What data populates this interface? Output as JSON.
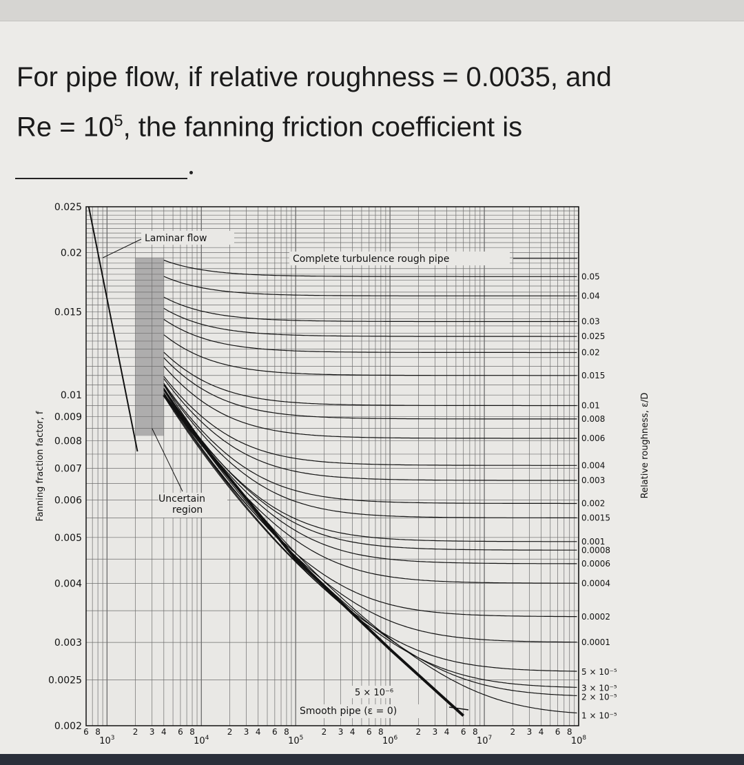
{
  "question": {
    "line1": "For pipe flow, if relative roughness = 0.0035, and",
    "line2_prefix": "Re = 10",
    "line2_sup": "5",
    "line2_suffix": ", the fanning friction coefficient is"
  },
  "chart_data": {
    "type": "line",
    "title": "",
    "ylabel": "Fanning fraction factor, f",
    "ylabel_sub": "f",
    "y2label": "Relative roughness, ε/D",
    "xscale": "log",
    "yscale": "log",
    "xlim": [
      600,
      100000000
    ],
    "ylim": [
      0.002,
      0.025
    ],
    "y_ticks": [
      "0.025",
      "0.02",
      "0.015",
      "0.01",
      "0.009",
      "0.008",
      "0.007",
      "0.006",
      "0.005",
      "0.004",
      "0.003",
      "0.0025",
      "0.002"
    ],
    "y_tick_values": [
      0.025,
      0.02,
      0.015,
      0.01,
      0.009,
      0.008,
      0.007,
      0.006,
      0.005,
      0.004,
      0.003,
      0.0025,
      0.002
    ],
    "x_decades": [
      {
        "value": 1000,
        "base": "10",
        "exp": "3"
      },
      {
        "value": 10000,
        "base": "10",
        "exp": "4"
      },
      {
        "value": 100000,
        "base": "10",
        "exp": "5"
      },
      {
        "value": 1000000,
        "base": "10",
        "exp": "6"
      },
      {
        "value": 10000000,
        "base": "10",
        "exp": "7"
      },
      {
        "value": 100000000,
        "base": "10",
        "exp": "8"
      }
    ],
    "x_minor_label_sets": [
      {
        "labels": [
          "6",
          "8"
        ],
        "values": [
          600,
          800
        ]
      },
      {
        "labels": [
          "2",
          "3",
          "4",
          "6",
          "8"
        ],
        "values": [
          2000,
          3000,
          4000,
          6000,
          8000
        ]
      },
      {
        "labels": [
          "2",
          "3",
          "4",
          "6",
          "8"
        ],
        "values": [
          20000,
          30000,
          40000,
          60000,
          80000
        ]
      },
      {
        "labels": [
          "2",
          "3",
          "4",
          "6",
          "8"
        ],
        "values": [
          200000,
          300000,
          400000,
          600000,
          800000
        ]
      },
      {
        "labels": [
          "2",
          "3",
          "4",
          "6",
          "8"
        ],
        "values": [
          2000000,
          3000000,
          4000000,
          6000000,
          8000000
        ]
      },
      {
        "labels": [
          "2",
          "3",
          "4",
          "6",
          "8"
        ],
        "values": [
          20000000,
          30000000,
          40000000,
          60000000,
          80000000
        ]
      }
    ],
    "roughness_curves": [
      {
        "label": "0.05",
        "value": 0.05,
        "f_rough": 0.0178
      },
      {
        "label": "0.04",
        "value": 0.04,
        "f_rough": 0.0162
      },
      {
        "label": "0.03",
        "value": 0.03,
        "f_rough": 0.0143
      },
      {
        "label": "0.025",
        "value": 0.025,
        "f_rough": 0.0133
      },
      {
        "label": "0.02",
        "value": 0.02,
        "f_rough": 0.0123
      },
      {
        "label": "0.015",
        "value": 0.015,
        "f_rough": 0.011
      },
      {
        "label": "0.01",
        "value": 0.01,
        "f_rough": 0.0095
      },
      {
        "label": "0.008",
        "value": 0.008,
        "f_rough": 0.0089
      },
      {
        "label": "0.006",
        "value": 0.006,
        "f_rough": 0.0081
      },
      {
        "label": "0.004",
        "value": 0.004,
        "f_rough": 0.0071
      },
      {
        "label": "0.003",
        "value": 0.003,
        "f_rough": 0.0066
      },
      {
        "label": "0.002",
        "value": 0.002,
        "f_rough": 0.0059
      },
      {
        "label": "0.0015",
        "value": 0.0015,
        "f_rough": 0.0055
      },
      {
        "label": "0.001",
        "value": 0.001,
        "f_rough": 0.0049
      },
      {
        "label": "0.0008",
        "value": 0.0008,
        "f_rough": 0.0047
      },
      {
        "label": "0.0006",
        "value": 0.0006,
        "f_rough": 0.0044
      },
      {
        "label": "0.0004",
        "value": 0.0004,
        "f_rough": 0.004
      },
      {
        "label": "0.0002",
        "value": 0.0002,
        "f_rough": 0.0034
      },
      {
        "label": "0.0001",
        "value": 0.0001,
        "f_rough": 0.003
      },
      {
        "label": "5 × 10⁻⁵",
        "value": 5e-05,
        "f_rough": 0.0026
      },
      {
        "label": "3 × 10⁻⁵",
        "value": 3e-05,
        "f_rough": 0.0024
      },
      {
        "label": "2 × 10⁻⁵",
        "value": 2e-05,
        "f_rough": 0.0023
      },
      {
        "label": "1 × 10⁻⁵",
        "value": 1e-05,
        "f_rough": 0.0021
      }
    ],
    "annotations": {
      "laminar": "Laminar flow",
      "complete": "Complete turbulence rough pipe",
      "uncertain_line1": "Uncertain",
      "uncertain_line2": "region",
      "smooth_eps": "5 × 10⁻⁶",
      "smooth_pipe": "Smooth pipe (ε = 0)"
    },
    "laminar_line": {
      "x": [
        640,
        2100
      ],
      "y": [
        0.025,
        0.0076
      ]
    },
    "uncertain_region": {
      "x": [
        2000,
        4000
      ]
    },
    "smooth_curve": {
      "x": [
        4000,
        10000,
        100000,
        1000000,
        6000000
      ],
      "y": [
        0.01,
        0.0079,
        0.0045,
        0.0029,
        0.0021
      ]
    },
    "grid": true
  },
  "colors": {
    "line": "#111111",
    "grid": "#6c6c6c",
    "background": "#e9e8e5",
    "uncertain": "#9a9a9a"
  }
}
